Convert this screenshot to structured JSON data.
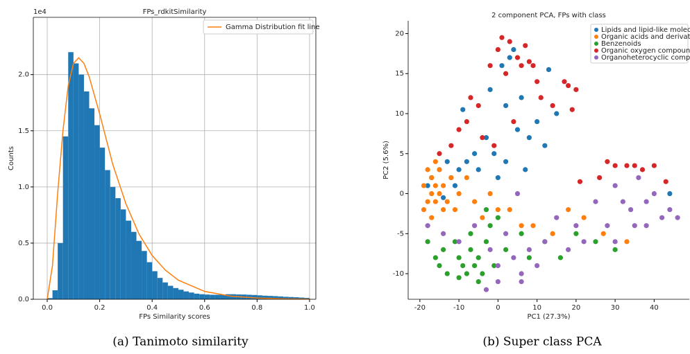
{
  "chart_data": [
    {
      "type": "histogram",
      "title": "FPs_rdkitSimilarity",
      "xlabel": "FPs Similarity scores",
      "ylabel": "Counts",
      "y_offset_label": "1e4",
      "caption": "(a) Tanimoto similarity",
      "color": "#1f77b4",
      "grid": true,
      "legend": "upper right",
      "bins": [
        0,
        0.02,
        0.04,
        0.06,
        0.08,
        0.1,
        0.12,
        0.14,
        0.16,
        0.18,
        0.2,
        0.22,
        0.24,
        0.26,
        0.28,
        0.3,
        0.32,
        0.34,
        0.36,
        0.38,
        0.4,
        0.42,
        0.44,
        0.46,
        0.48,
        0.5,
        0.52,
        0.54,
        0.56,
        0.58,
        0.6,
        0.62,
        0.64,
        0.66,
        0.68,
        0.7,
        0.72,
        0.74,
        0.76,
        0.78,
        0.8,
        0.82,
        0.84,
        0.86,
        0.88,
        0.9,
        0.92,
        0.94,
        0.96,
        0.98,
        1.0
      ],
      "values": [
        100,
        800,
        5000,
        14500,
        22000,
        21000,
        20000,
        18500,
        17000,
        15500,
        13500,
        11500,
        10000,
        9000,
        8000,
        7000,
        6000,
        5200,
        4300,
        3300,
        2500,
        1900,
        1500,
        1200,
        1000,
        850,
        700,
        600,
        500,
        450,
        420,
        400,
        400,
        420,
        450,
        450,
        430,
        420,
        400,
        380,
        350,
        320,
        300,
        280,
        250,
        220,
        200,
        180,
        150,
        120,
        700
      ],
      "fit": {
        "name": "Gamma Distribution fit line",
        "color": "#ff7f0e",
        "x": [
          0,
          0.02,
          0.04,
          0.06,
          0.08,
          0.1,
          0.12,
          0.14,
          0.16,
          0.2,
          0.25,
          0.3,
          0.35,
          0.4,
          0.45,
          0.5,
          0.6,
          0.7,
          0.8,
          0.9,
          1.0
        ],
        "y": [
          0,
          3000,
          9500,
          15000,
          19000,
          21000,
          21500,
          21000,
          19800,
          16500,
          12000,
          8500,
          5800,
          3900,
          2600,
          1700,
          700,
          280,
          110,
          40,
          15
        ]
      },
      "xlim": [
        -0.053,
        1.024
      ],
      "ylim": [
        0,
        25100
      ],
      "xticks": [
        {
          "value": 0,
          "label": "0.0"
        },
        0.2,
        0.4,
        0.6,
        0.8,
        {
          "value": 1,
          "label": "1.0"
        }
      ],
      "yticks": [
        {
          "value": 0,
          "label": "0.0"
        },
        {
          "value": 5000,
          "label": "0.5"
        },
        {
          "value": 10000,
          "label": "1.0"
        },
        {
          "value": 15000,
          "label": "1.5"
        },
        {
          "value": 20000,
          "label": "2.0"
        }
      ]
    },
    {
      "type": "scatter",
      "title": "2 component PCA, FPs with class",
      "xlabel": "PC1 (27.3%)",
      "ylabel": "PC2 (5.6%)",
      "caption": "(b) Super class PCA",
      "grid": false,
      "legend": "upper right",
      "xlim": [
        -23,
        49
      ],
      "ylim": [
        -13.2,
        21.6
      ],
      "xticks": [
        -20,
        -10,
        0,
        10,
        20,
        30,
        40
      ],
      "yticks": [
        -10,
        -5,
        0,
        5,
        10,
        15,
        20
      ],
      "series": [
        {
          "name": "Lipids and lipid-like molecules",
          "color": "#1f77b4",
          "x": [
            -17,
            -15,
            -13,
            -12,
            -10,
            -9,
            -8,
            -6,
            -5,
            -3,
            -2,
            -1,
            0,
            1,
            2,
            3,
            4,
            5,
            6,
            7,
            8,
            10,
            12,
            13,
            15,
            -18,
            -14,
            44,
            -11,
            2
          ],
          "y": [
            2,
            3,
            4,
            2,
            3,
            10.5,
            4,
            5,
            3,
            7,
            13,
            5,
            2,
            16,
            11,
            17,
            18,
            8,
            12,
            3,
            7,
            9,
            6,
            15.5,
            10,
            1,
            -0.5,
            0,
            1,
            4
          ]
        },
        {
          "name": "Organic acids and derivatives",
          "color": "#ff7f0e",
          "x": [
            -19,
            -18,
            -17,
            -17,
            -16,
            -16,
            -15,
            -15,
            -14,
            -13,
            -19,
            -18,
            -17,
            -12,
            -11,
            -10,
            -8,
            -6,
            -4,
            -2,
            0,
            3,
            6,
            9,
            14,
            18,
            22,
            27,
            33,
            -16,
            -14
          ],
          "y": [
            1,
            -1,
            0,
            2,
            1,
            -1,
            0,
            3,
            1,
            -1,
            -2,
            3,
            -3,
            2,
            -2,
            0,
            2,
            -1,
            -3,
            0,
            -2,
            -2,
            -4,
            -4,
            -5,
            -2,
            -3,
            -5,
            -6,
            4,
            -2
          ]
        },
        {
          "name": "Benzenoids",
          "color": "#2ca02c",
          "x": [
            -18,
            -16,
            -14,
            -13,
            -11,
            -10,
            -9,
            -8,
            -7,
            -6,
            -5,
            -4,
            -3,
            -2,
            -1,
            0,
            -5,
            -10,
            -15,
            2,
            6,
            8,
            12,
            16,
            20,
            25,
            30,
            -7,
            -3
          ],
          "y": [
            -6,
            -8,
            -7,
            -10,
            -6,
            -8,
            -9,
            -10,
            -7,
            -9,
            -8,
            -10,
            -6,
            -4,
            -9,
            -3,
            -11,
            -10.5,
            -9,
            -7,
            -5,
            -8,
            -6,
            -8,
            -5,
            -6,
            -7,
            -5,
            -2
          ]
        },
        {
          "name": "Organic oxygen compounds",
          "color": "#d62728",
          "x": [
            -15,
            -12,
            -10,
            -8,
            -7,
            -5,
            -4,
            -2,
            0,
            1,
            2,
            3,
            5,
            6,
            7,
            8,
            9,
            10,
            11,
            14,
            17,
            18,
            20,
            19,
            21,
            26,
            28,
            30,
            33,
            35,
            37,
            40,
            43,
            -1,
            4
          ],
          "y": [
            5,
            6,
            8,
            9,
            12,
            11,
            7,
            16,
            18,
            19.5,
            15,
            19,
            17,
            16,
            18.5,
            16.5,
            16,
            14,
            12,
            11,
            14,
            13.5,
            13,
            10.5,
            1.5,
            2,
            4,
            3.5,
            3.5,
            3.5,
            3,
            3.5,
            1.5,
            6,
            9
          ]
        },
        {
          "name": "Organoheterocyclic compounds",
          "color": "#9467bd",
          "x": [
            -18,
            -14,
            -10,
            -6,
            -2,
            0,
            2,
            4,
            6,
            8,
            10,
            12,
            15,
            18,
            20,
            22,
            25,
            28,
            30,
            32,
            34,
            36,
            38,
            40,
            42,
            44,
            46,
            38,
            35,
            30,
            5,
            -3,
            6,
            0
          ],
          "y": [
            -4,
            -5,
            -6,
            -4,
            -7,
            -9,
            -5,
            -8,
            -10,
            -7,
            -9,
            -6,
            -3,
            -7,
            -4,
            -6,
            -1,
            -4,
            1,
            -1,
            -2,
            2,
            -1,
            0,
            -3,
            -2,
            -3,
            -4,
            -4,
            -6,
            0,
            -12,
            -11,
            -11
          ]
        }
      ]
    }
  ]
}
